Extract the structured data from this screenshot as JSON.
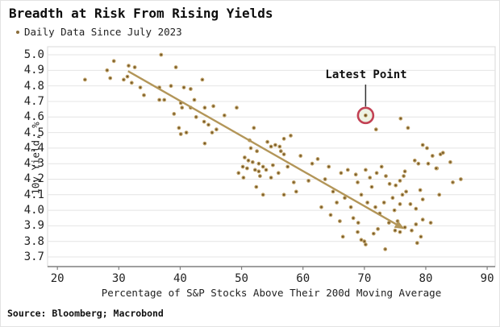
{
  "header": {
    "title": "Breadth at Risk From Rising Yields",
    "subtitle": "Daily Data Since July 2023"
  },
  "footer": {
    "source": "Source: Bloomberg; Macrobond"
  },
  "colors": {
    "point_core": "#6e5425",
    "point_halo": "#bfa065",
    "trend_line": "#b39659",
    "highlight_ring": "#c24154",
    "highlight_fill": "#edf2e3",
    "annotation_line": "#333333",
    "gridline": "#e4e4e4",
    "plot_border": "#d8d8d8",
    "axis_line": "#7f7f7f",
    "text": "#1a1a1a"
  },
  "chart_data": {
    "type": "scatter",
    "title": "Breadth at Risk From Rising Yields",
    "subtitle": "Daily Data Since July 2023",
    "xlabel": "Percentage of S&P Stocks Above Their 200d Moving Average",
    "ylabel": "10y Yield, %",
    "xlim": [
      18.4,
      91.3
    ],
    "ylim": [
      3.638,
      5.052
    ],
    "xticks": [
      20,
      30,
      40,
      50,
      60,
      70,
      80,
      90
    ],
    "yticks": [
      3.7,
      3.8,
      3.9,
      4.0,
      4.1,
      4.2,
      4.3,
      4.4,
      4.5,
      4.6,
      4.7,
      4.8,
      4.9,
      5.0
    ],
    "grid": "horizontal",
    "legend": "none",
    "trendline": {
      "x1": 31.5,
      "y1": 4.895,
      "x2": 76.3,
      "y2": 3.885,
      "arrow": true
    },
    "annotation": {
      "label": "Latest Point",
      "x": 70.2,
      "y": 4.61
    },
    "points": [
      [
        24.5,
        4.84
      ],
      [
        28.1,
        4.9
      ],
      [
        28.6,
        4.85
      ],
      [
        29.2,
        4.96
      ],
      [
        30.8,
        4.84
      ],
      [
        31.6,
        4.93
      ],
      [
        32.6,
        4.92
      ],
      [
        31.4,
        4.86
      ],
      [
        32.1,
        4.82
      ],
      [
        33.5,
        4.79
      ],
      [
        36.9,
        5.0
      ],
      [
        39.3,
        4.92
      ],
      [
        36.6,
        4.79
      ],
      [
        34.1,
        4.74
      ],
      [
        36.6,
        4.71
      ],
      [
        37.4,
        4.71
      ],
      [
        38.5,
        4.8
      ],
      [
        40.6,
        4.79
      ],
      [
        41.7,
        4.78
      ],
      [
        43.6,
        4.84
      ],
      [
        39.0,
        4.62
      ],
      [
        40.1,
        4.69
      ],
      [
        40.3,
        4.66
      ],
      [
        41.7,
        4.66
      ],
      [
        42.3,
        4.71
      ],
      [
        44.0,
        4.66
      ],
      [
        45.4,
        4.67
      ],
      [
        42.6,
        4.6
      ],
      [
        39.8,
        4.53
      ],
      [
        40.1,
        4.49
      ],
      [
        41.0,
        4.5
      ],
      [
        43.9,
        4.57
      ],
      [
        44.6,
        4.55
      ],
      [
        45.2,
        4.5
      ],
      [
        44.0,
        4.43
      ],
      [
        45.9,
        4.52
      ],
      [
        47.2,
        4.61
      ],
      [
        49.2,
        4.66
      ],
      [
        52.0,
        4.53
      ],
      [
        51.3,
        4.45
      ],
      [
        51.5,
        4.4
      ],
      [
        52.5,
        4.38
      ],
      [
        54.2,
        4.44
      ],
      [
        54.8,
        4.41
      ],
      [
        55.5,
        4.42
      ],
      [
        56.4,
        4.38
      ],
      [
        50.5,
        4.34
      ],
      [
        51.1,
        4.32
      ],
      [
        51.8,
        4.31
      ],
      [
        52.8,
        4.3
      ],
      [
        53.5,
        4.28
      ],
      [
        50.2,
        4.28
      ],
      [
        50.9,
        4.27
      ],
      [
        52.2,
        4.26
      ],
      [
        52.8,
        4.25
      ],
      [
        49.5,
        4.24
      ],
      [
        50.3,
        4.21
      ],
      [
        53.0,
        4.22
      ],
      [
        54.0,
        4.26
      ],
      [
        55.1,
        4.29
      ],
      [
        52.4,
        4.15
      ],
      [
        53.5,
        4.1
      ],
      [
        54.8,
        4.21
      ],
      [
        56.2,
        4.41
      ],
      [
        56.9,
        4.46
      ],
      [
        58.0,
        4.48
      ],
      [
        56.9,
        4.36
      ],
      [
        59.6,
        4.35
      ],
      [
        57.5,
        4.28
      ],
      [
        58.5,
        4.18
      ],
      [
        56.0,
        4.24
      ],
      [
        56.9,
        4.1
      ],
      [
        58.9,
        4.12
      ],
      [
        60.9,
        4.19
      ],
      [
        61.5,
        4.3
      ],
      [
        62.4,
        4.33
      ],
      [
        63.6,
        4.2
      ],
      [
        64.2,
        4.28
      ],
      [
        64.9,
        4.12
      ],
      [
        65.5,
        4.05
      ],
      [
        66.2,
        4.24
      ],
      [
        67.3,
        4.26
      ],
      [
        68.6,
        4.23
      ],
      [
        70.2,
        4.26
      ],
      [
        70.9,
        4.21
      ],
      [
        68.9,
        4.18
      ],
      [
        69.5,
        4.1
      ],
      [
        66.8,
        4.08
      ],
      [
        67.8,
        4.02
      ],
      [
        63.0,
        4.02
      ],
      [
        64.5,
        3.97
      ],
      [
        66.0,
        3.93
      ],
      [
        68.2,
        3.95
      ],
      [
        69.0,
        3.92
      ],
      [
        70.5,
        4.05
      ],
      [
        71.2,
        4.15
      ],
      [
        72.0,
        4.24
      ],
      [
        72.8,
        4.28
      ],
      [
        73.5,
        4.22
      ],
      [
        74.1,
        4.17
      ],
      [
        71.8,
        4.02
      ],
      [
        72.5,
        3.98
      ],
      [
        73.2,
        4.05
      ],
      [
        74.6,
        4.08
      ],
      [
        70.0,
        3.8
      ],
      [
        71.5,
        3.85
      ],
      [
        73.4,
        3.75
      ],
      [
        72.2,
        3.88
      ],
      [
        74.0,
        3.92
      ],
      [
        75.0,
        3.87
      ],
      [
        66.5,
        3.83
      ],
      [
        68.9,
        3.86
      ],
      [
        69.5,
        3.81
      ],
      [
        70.2,
        3.78
      ],
      [
        71.9,
        4.52
      ],
      [
        75.9,
        4.59
      ],
      [
        77.1,
        4.53
      ],
      [
        79.5,
        4.42
      ],
      [
        80.2,
        4.4
      ],
      [
        81.1,
        4.35
      ],
      [
        82.4,
        4.36
      ],
      [
        82.8,
        4.37
      ],
      [
        84.0,
        4.31
      ],
      [
        81.8,
        4.27
      ],
      [
        78.2,
        4.32
      ],
      [
        78.8,
        4.3
      ],
      [
        80.4,
        4.3
      ],
      [
        81.7,
        4.27
      ],
      [
        76.6,
        4.25
      ],
      [
        76.4,
        4.22
      ],
      [
        75.8,
        4.19
      ],
      [
        75.1,
        4.16
      ],
      [
        76.8,
        4.12
      ],
      [
        76.2,
        4.1
      ],
      [
        79.1,
        4.13
      ],
      [
        79.5,
        4.07
      ],
      [
        75.8,
        4.04
      ],
      [
        77.5,
        4.04
      ],
      [
        78.4,
        4.01
      ],
      [
        74.9,
        4.0
      ],
      [
        84.4,
        4.18
      ],
      [
        85.7,
        4.2
      ],
      [
        82.2,
        4.1
      ],
      [
        79.5,
        3.94
      ],
      [
        78.4,
        3.91
      ],
      [
        80.8,
        3.92
      ],
      [
        76.6,
        3.89
      ],
      [
        77.7,
        3.87
      ],
      [
        75.8,
        3.86
      ],
      [
        79.2,
        3.83
      ],
      [
        78.6,
        3.79
      ],
      [
        75.4,
        3.93
      ],
      [
        70.2,
        4.61
      ]
    ]
  }
}
